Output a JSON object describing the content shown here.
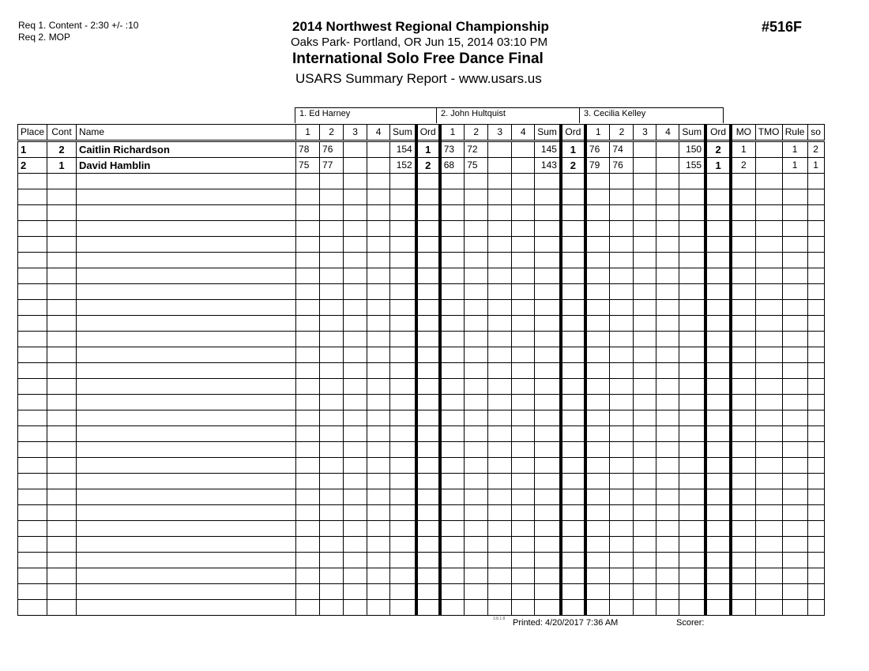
{
  "requirements": [
    "Req  1.  Content - 2:30 +/- :10",
    "Req  2.  MOP"
  ],
  "header": {
    "title": "2014 Northwest Regional Championship",
    "subtitle": "Oaks Park- Portland, OR  Jun 15, 2014  03:10 PM",
    "event": "International Solo Free Dance Final",
    "report": "USARS Summary Report - www.usars.us",
    "event_number": "#516F"
  },
  "judges": [
    "1.  Ed Harney",
    "2.  John Hultquist",
    "3.  Cecilia Kelley"
  ],
  "columns": {
    "place": "Place",
    "cont": "Cont",
    "name": "Name",
    "judge_cols": [
      "1",
      "2",
      "3",
      "4",
      "Sum",
      "Ord"
    ],
    "mo": "MO",
    "tmo": "TMO",
    "rule": "Rule",
    "so": "so"
  },
  "rows": [
    {
      "place": "1",
      "cont": "2",
      "name": "Caitlin Richardson",
      "judges": [
        [
          "78",
          "76",
          "",
          "",
          "154",
          "1"
        ],
        [
          "73",
          "72",
          "",
          "",
          "145",
          "1"
        ],
        [
          "76",
          "74",
          "",
          "",
          "150",
          "2"
        ]
      ],
      "mo": "1",
      "tmo": "",
      "rule": "1",
      "so": "2"
    },
    {
      "place": "2",
      "cont": "1",
      "name": "David Hamblin",
      "judges": [
        [
          "75",
          "77",
          "",
          "",
          "152",
          "2"
        ],
        [
          "68",
          "75",
          "",
          "",
          "143",
          "2"
        ],
        [
          "79",
          "76",
          "",
          "",
          "155",
          "1"
        ]
      ],
      "mo": "2",
      "tmo": "",
      "rule": "1",
      "so": "1"
    }
  ],
  "footer": {
    "version": "3.8.1.8",
    "printed": "Printed:  4/20/2017  7:36 AM",
    "scorer": "Scorer:"
  }
}
